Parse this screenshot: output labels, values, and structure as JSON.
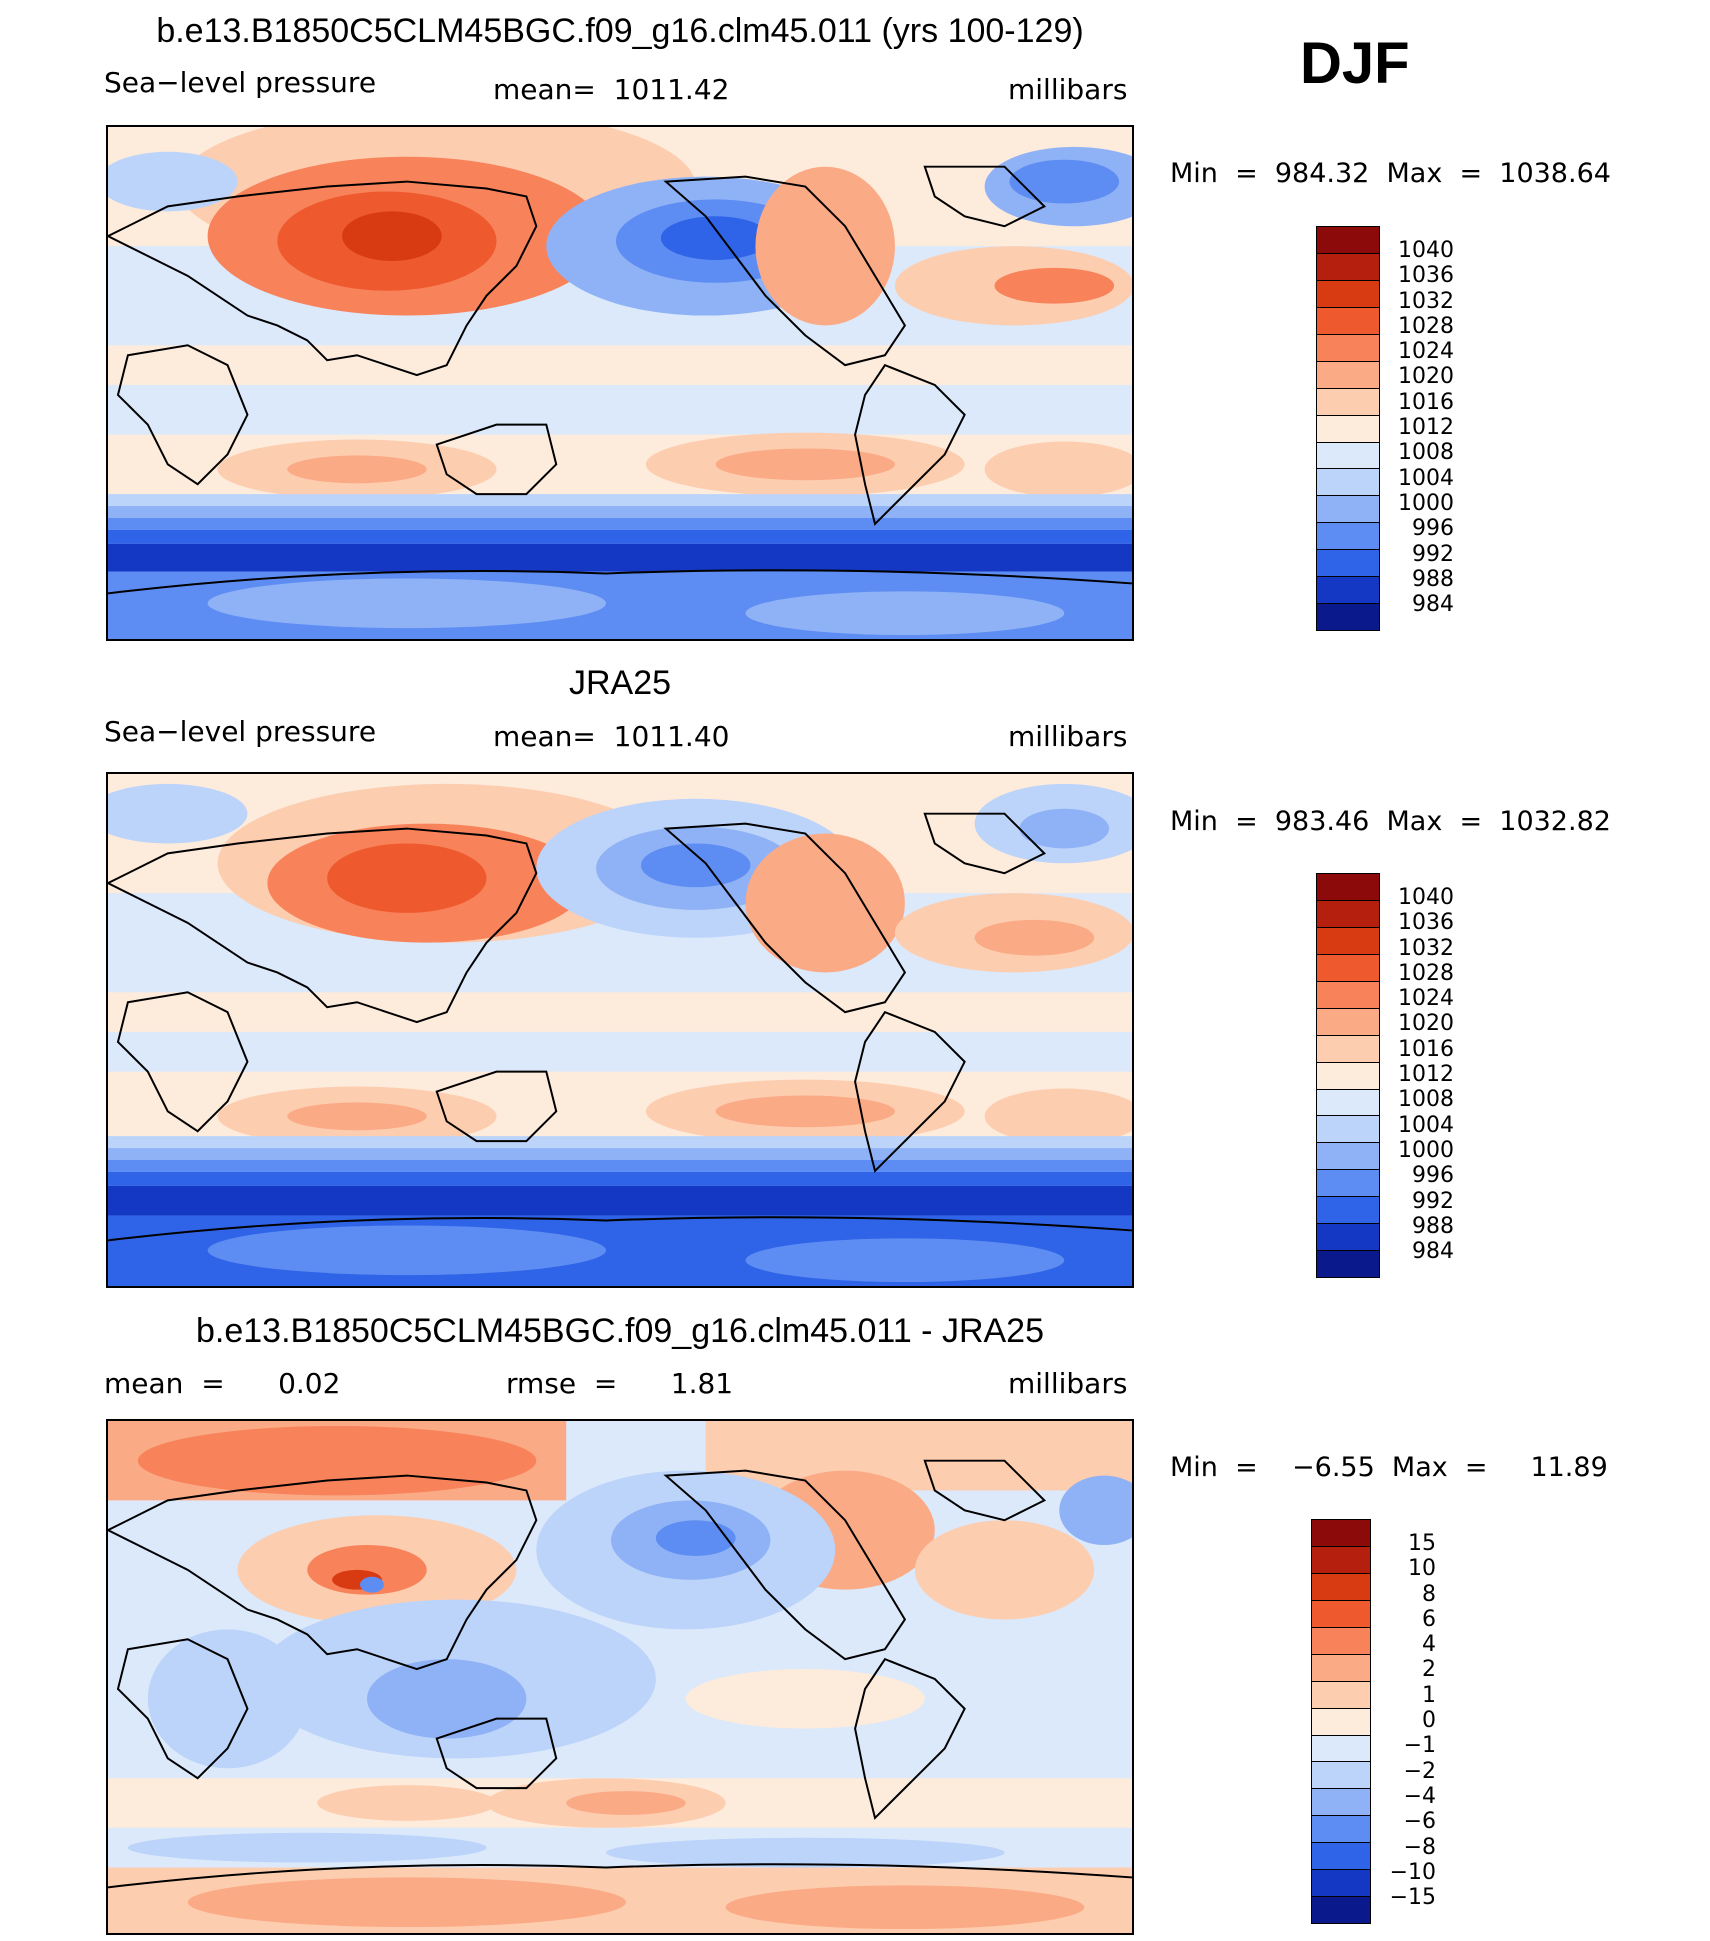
{
  "season": "DJF",
  "panels": [
    {
      "title": "b.e13.B1850C5CLM45BGC.f09_g16.clm45.011 (yrs 100-129)",
      "left": "Sea−level pressure",
      "center": "mean=  1011.42",
      "right": "millibars",
      "minmax": "Min  =  984.32  Max  =  1038.64",
      "colorbar_labels": [
        "1040",
        "1036",
        "1032",
        "1028",
        "1024",
        "1020",
        "1016",
        "1012",
        "1008",
        "1004",
        "1000",
        "996",
        "992",
        "988",
        "984"
      ],
      "colors": [
        "#8c0a0a",
        "#b5200e",
        "#d83a12",
        "#ee5a2e",
        "#f8825a",
        "#fbaa86",
        "#fdcdb0",
        "#fdebdc",
        "#dbe9fb",
        "#bcd3fa",
        "#8fb2f6",
        "#5d8df2",
        "#2f63e8",
        "#1438c4",
        "#0a1a8c"
      ]
    },
    {
      "title": "JRA25",
      "left": "Sea−level pressure",
      "center": "mean=  1011.40",
      "right": "millibars",
      "minmax": "Min  =  983.46  Max  =  1032.82",
      "colorbar_labels": [
        "1040",
        "1036",
        "1032",
        "1028",
        "1024",
        "1020",
        "1016",
        "1012",
        "1008",
        "1004",
        "1000",
        "996",
        "992",
        "988",
        "984"
      ],
      "colors": [
        "#8c0a0a",
        "#b5200e",
        "#d83a12",
        "#ee5a2e",
        "#f8825a",
        "#fbaa86",
        "#fdcdb0",
        "#fdebdc",
        "#dbe9fb",
        "#bcd3fa",
        "#8fb2f6",
        "#5d8df2",
        "#2f63e8",
        "#1438c4",
        "#0a1a8c"
      ]
    },
    {
      "title": "b.e13.B1850C5CLM45BGC.f09_g16.clm45.011 - JRA25",
      "left": "mean  =      0.02",
      "center": "rmse  =      1.81",
      "right": "millibars",
      "minmax": "Min  =    −6.55  Max  =     11.89",
      "colorbar_labels": [
        "15",
        "10",
        "8",
        "6",
        "4",
        "2",
        "1",
        "0",
        "−1",
        "−2",
        "−4",
        "−6",
        "−8",
        "−10",
        "−15"
      ],
      "colors": [
        "#8c0a0a",
        "#b5200e",
        "#d83a12",
        "#ee5a2e",
        "#f8825a",
        "#fbaa86",
        "#fdcdb0",
        "#fdebdc",
        "#dbe9fb",
        "#bcd3fa",
        "#8fb2f6",
        "#5d8df2",
        "#2f63e8",
        "#1438c4",
        "#0a1a8c"
      ]
    }
  ]
}
